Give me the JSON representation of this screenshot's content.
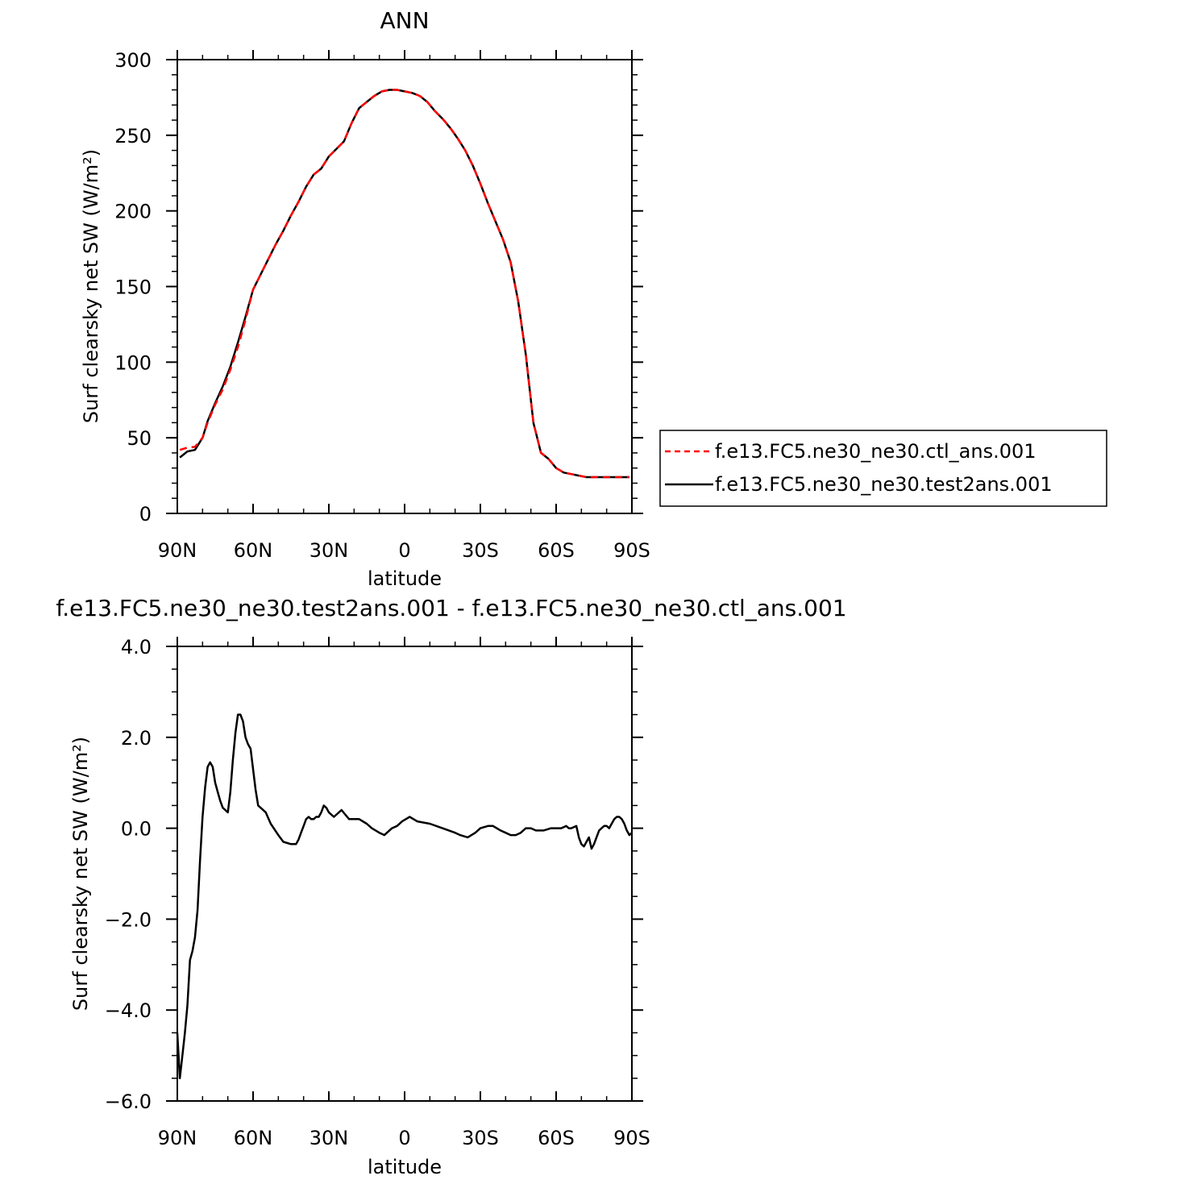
{
  "chart_data": [
    {
      "type": "line",
      "title": "ANN",
      "xlabel": "latitude",
      "ylabel": "Surf clearsky net SW (W/m²)",
      "x_tick_labels": [
        "90N",
        "60N",
        "30N",
        "0",
        "30S",
        "60S",
        "90S"
      ],
      "x_tick_values": [
        -90,
        -60,
        -30,
        0,
        30,
        60,
        90
      ],
      "y_tick_labels": [
        "0",
        "50",
        "100",
        "150",
        "200",
        "250",
        "300"
      ],
      "y_tick_values": [
        0,
        50,
        100,
        150,
        200,
        250,
        300
      ],
      "xlim": [
        -90,
        90
      ],
      "ylim": [
        0,
        300
      ],
      "legend_position": "right",
      "x": [
        -89,
        -86,
        -83,
        -80,
        -78,
        -75,
        -72,
        -69,
        -66,
        -63,
        -60,
        -57,
        -54,
        -51,
        -48,
        -45,
        -42,
        -39,
        -36,
        -33,
        -30,
        -27,
        -24,
        -21,
        -18,
        -15,
        -12,
        -9,
        -6,
        -3,
        0,
        3,
        6,
        9,
        12,
        15,
        18,
        21,
        24,
        27,
        30,
        33,
        36,
        39,
        42,
        45,
        48,
        51,
        54,
        57,
        60,
        63,
        66,
        69,
        72,
        75,
        78,
        81,
        84,
        87,
        89
      ],
      "series": [
        {
          "name": "f.e13.FC5.ne30_ne30.ctl_ans.001",
          "color": "#ff0000",
          "style": "dashed",
          "values": [
            42,
            43.5,
            44,
            50,
            60,
            72,
            82,
            95,
            110,
            128,
            148,
            158,
            168,
            178,
            187,
            197,
            206,
            216,
            224,
            228,
            236,
            241,
            246,
            258,
            268,
            272,
            276,
            279,
            280,
            280,
            279,
            278,
            276,
            272,
            266,
            261,
            255,
            248,
            240,
            230,
            218,
            205,
            193,
            181,
            166,
            140,
            105,
            60,
            40,
            36,
            30,
            27,
            26,
            25,
            24,
            24,
            24,
            24,
            24,
            24,
            24
          ]
        },
        {
          "name": "f.e13.FC5.ne30_ne30.test2ans.001",
          "color": "#000000",
          "style": "solid",
          "values": [
            37,
            41,
            42,
            50,
            61,
            73,
            84,
            97,
            113,
            130,
            148,
            158,
            168,
            178,
            187,
            197,
            206,
            216,
            224,
            228,
            236,
            241,
            246,
            258,
            268,
            272,
            276,
            279,
            280,
            280,
            279,
            278,
            276,
            272,
            266,
            261,
            255,
            248,
            240,
            230,
            218,
            205,
            193,
            181,
            166,
            140,
            105,
            60,
            40,
            36,
            30,
            27,
            26,
            25,
            24,
            24,
            24,
            24,
            24,
            24,
            24
          ]
        }
      ]
    },
    {
      "type": "line",
      "title": "f.e13.FC5.ne30_ne30.test2ans.001 - f.e13.FC5.ne30_ne30.ctl_ans.001",
      "xlabel": "latitude",
      "ylabel": "Surf clearsky net SW (W/m²)",
      "x_tick_labels": [
        "90N",
        "60N",
        "30N",
        "0",
        "30S",
        "60S",
        "90S"
      ],
      "x_tick_values": [
        -90,
        -60,
        -30,
        0,
        30,
        60,
        90
      ],
      "y_tick_labels": [
        "−6.0",
        "−4.0",
        "−2.0",
        "0.0",
        "2.0",
        "4.0"
      ],
      "y_tick_values": [
        -6,
        -4,
        -2,
        0,
        2,
        4
      ],
      "xlim": [
        -90,
        90
      ],
      "ylim": [
        -6,
        4
      ],
      "series": [
        {
          "color": "#000000",
          "style": "solid",
          "x": [
            -90,
            -89,
            -88,
            -87,
            -86,
            -85,
            -84,
            -83,
            -82,
            -81,
            -80,
            -79,
            -78,
            -77,
            -76,
            -75,
            -74,
            -73,
            -72,
            -71,
            -70,
            -69,
            -68,
            -67,
            -66,
            -65,
            -64,
            -63,
            -62,
            -61,
            -60,
            -59,
            -58,
            -57,
            -55,
            -53,
            -50,
            -48,
            -45,
            -43,
            -42,
            -41,
            -40,
            -39,
            -38,
            -37,
            -36,
            -35,
            -34,
            -33,
            -32,
            -31,
            -30,
            -28,
            -25,
            -22,
            -18,
            -15,
            -13,
            -10,
            -8,
            -5,
            -3,
            -1,
            2,
            5,
            10,
            15,
            20,
            22,
            25,
            28,
            30,
            33,
            35,
            38,
            40,
            42,
            44,
            46,
            48,
            50,
            52,
            55,
            58,
            60,
            62,
            64,
            65,
            66,
            68,
            69,
            70,
            71,
            72,
            73,
            74,
            75,
            76,
            77,
            78,
            79,
            80,
            81,
            82,
            83,
            84,
            85,
            86,
            87,
            88,
            89,
            90
          ],
          "values": [
            -4.5,
            -5.5,
            -5.0,
            -4.5,
            -3.9,
            -2.9,
            -2.7,
            -2.4,
            -1.8,
            -0.7,
            0.25,
            0.9,
            1.35,
            1.45,
            1.35,
            1.0,
            0.8,
            0.6,
            0.45,
            0.4,
            0.35,
            0.8,
            1.5,
            2.1,
            2.5,
            2.5,
            2.35,
            2.0,
            1.85,
            1.75,
            1.3,
            0.85,
            0.5,
            0.45,
            0.35,
            0.1,
            -0.15,
            -0.3,
            -0.35,
            -0.35,
            -0.25,
            -0.1,
            0.05,
            0.2,
            0.25,
            0.2,
            0.2,
            0.25,
            0.25,
            0.35,
            0.5,
            0.45,
            0.35,
            0.25,
            0.4,
            0.2,
            0.2,
            0.1,
            0.0,
            -0.1,
            -0.15,
            0.0,
            0.05,
            0.15,
            0.25,
            0.15,
            0.1,
            0.0,
            -0.1,
            -0.15,
            -0.2,
            -0.1,
            0.0,
            0.05,
            0.05,
            -0.05,
            -0.1,
            -0.15,
            -0.15,
            -0.1,
            0.0,
            0.0,
            -0.05,
            -0.05,
            0.0,
            0.0,
            0.0,
            0.05,
            0.0,
            0.0,
            0.05,
            -0.2,
            -0.35,
            -0.4,
            -0.3,
            -0.2,
            -0.45,
            -0.35,
            -0.2,
            -0.05,
            0.0,
            0.05,
            0.05,
            0.0,
            0.1,
            0.2,
            0.25,
            0.25,
            0.2,
            0.1,
            -0.05,
            -0.15,
            -0.1
          ]
        }
      ]
    }
  ]
}
